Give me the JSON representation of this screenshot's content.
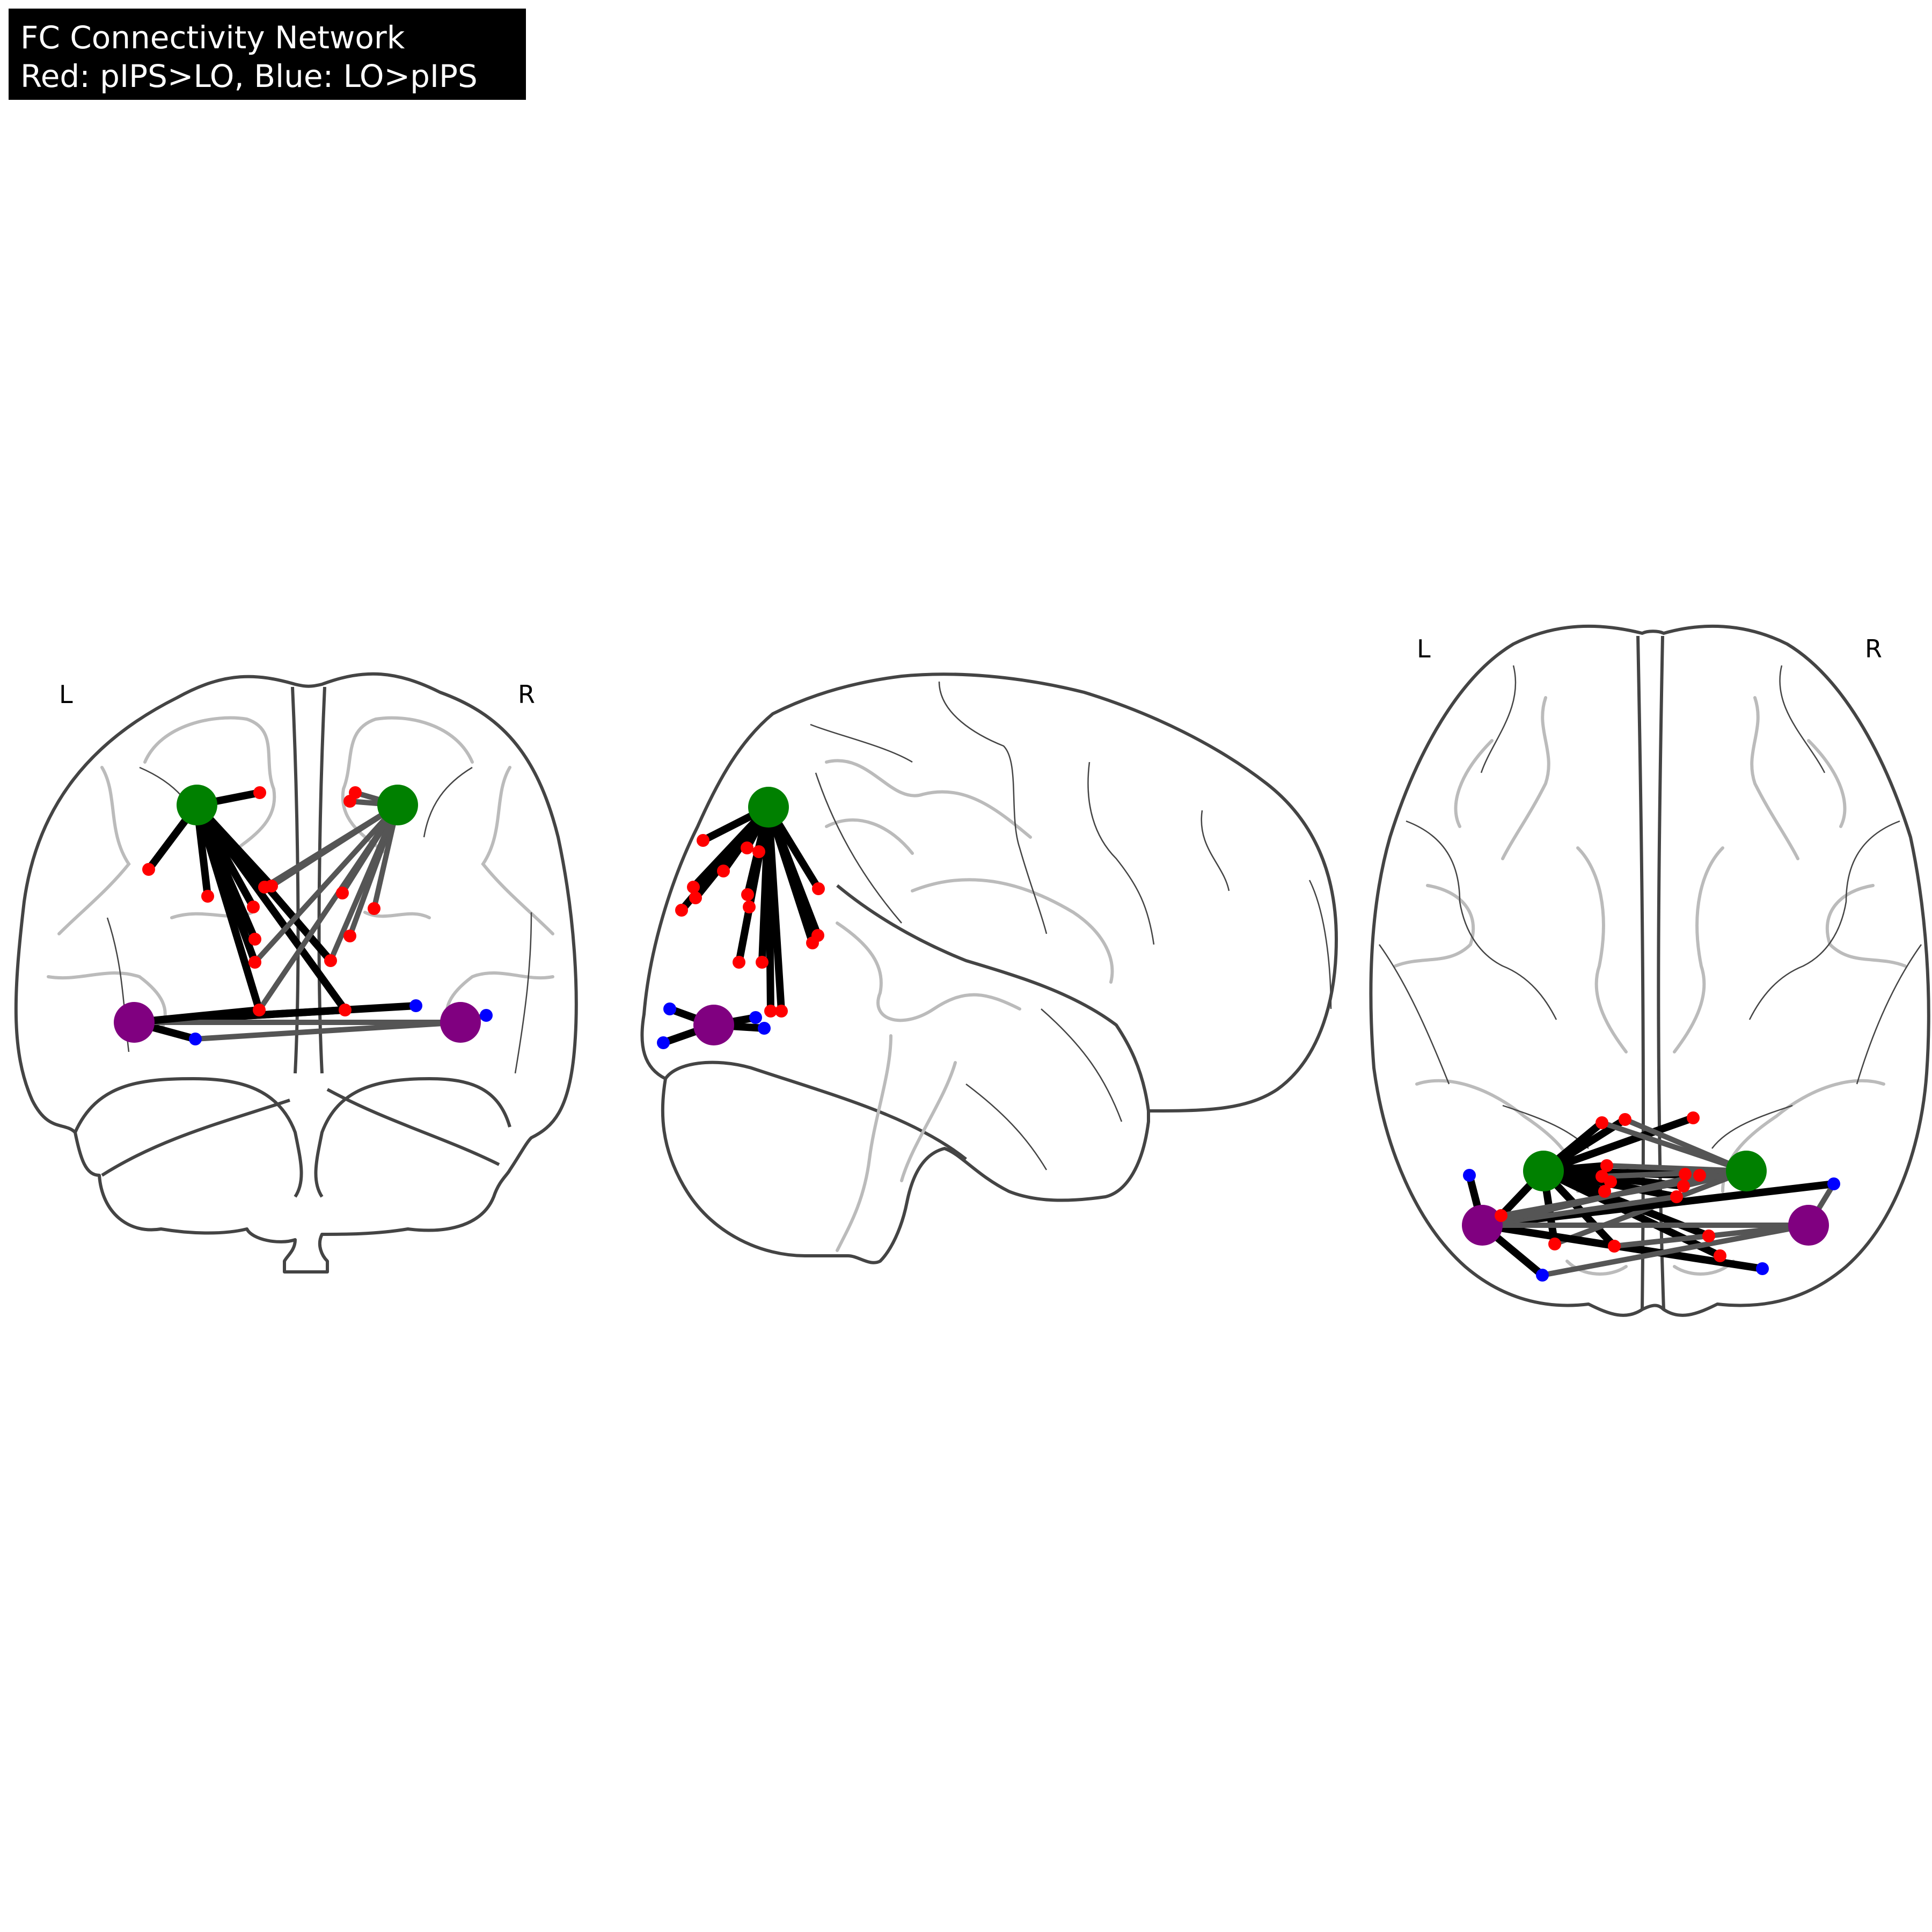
{
  "title": {
    "line1": "FC Connectivity Network",
    "line2": "Red: pIPS>LO, Blue: LO>pIPS",
    "background": "#000000",
    "text_color": "#ffffff"
  },
  "views": [
    {
      "name": "coronal",
      "left_label": "L",
      "right_label": "R"
    },
    {
      "name": "sagittal"
    },
    {
      "name": "axial",
      "left_label": "L",
      "right_label": "R"
    }
  ],
  "colors": {
    "seed_pips": "#008000",
    "seed_lo": "#800080",
    "target_pips_gt_lo": "#ff0000",
    "target_lo_gt_pips": "#0000ff",
    "edge_strong": "#000000",
    "edge_weak": "#555555",
    "outline": "#444444",
    "gyri": "#bbbbbb"
  }
}
